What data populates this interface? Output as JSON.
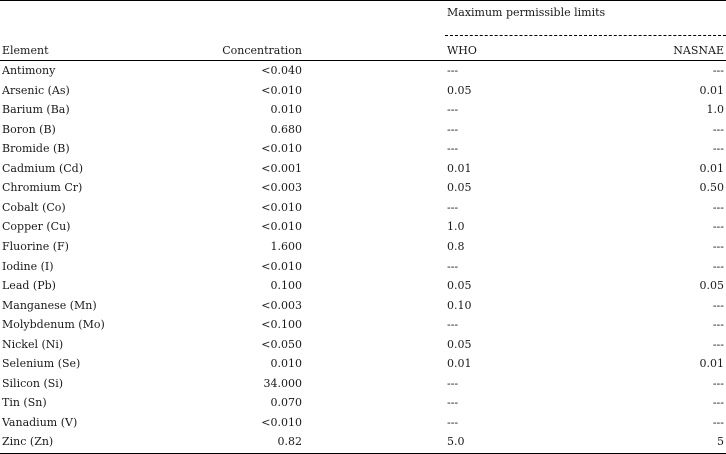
{
  "table": {
    "group_header": "Maximum permissible limits",
    "headers": {
      "element": "Element",
      "concentration": "Concentration",
      "who": "WHO",
      "nasnae": "NASNAE"
    },
    "rows": [
      {
        "element": "Antimony",
        "concentration": "<0.040",
        "who": "---",
        "nasnae": "---"
      },
      {
        "element": "Arsenic (As)",
        "concentration": "<0.010",
        "who": "0.05",
        "nasnae": "0.01"
      },
      {
        "element": "Barium (Ba)",
        "concentration": "0.010",
        "who": "---",
        "nasnae": "1.0"
      },
      {
        "element": "Boron (B)",
        "concentration": "0.680",
        "who": "---",
        "nasnae": "---"
      },
      {
        "element": "Bromide (B)",
        "concentration": "<0.010",
        "who": "---",
        "nasnae": "---"
      },
      {
        "element": "Cadmium (Cd)",
        "concentration": "<0.001",
        "who": "0.01",
        "nasnae": "0.01"
      },
      {
        "element": "Chromium Cr)",
        "concentration": "<0.003",
        "who": "0.05",
        "nasnae": "0.50"
      },
      {
        "element": "Cobalt (Co)",
        "concentration": "<0.010",
        "who": "---",
        "nasnae": "---"
      },
      {
        "element": "Copper (Cu)",
        "concentration": "<0.010",
        "who": "1.0",
        "nasnae": "---"
      },
      {
        "element": "Fluorine (F)",
        "concentration": "1.600",
        "who": "0.8",
        "nasnae": "---"
      },
      {
        "element": "Iodine (I)",
        "concentration": "<0.010",
        "who": "---",
        "nasnae": "---"
      },
      {
        "element": "Lead (Pb)",
        "concentration": "0.100",
        "who": "0.05",
        "nasnae": "0.05"
      },
      {
        "element": "Manganese (Mn)",
        "concentration": "<0.003",
        "who": "0.10",
        "nasnae": "---"
      },
      {
        "element": "Molybdenum (Mo)",
        "concentration": "<0.100",
        "who": "---",
        "nasnae": "---"
      },
      {
        "element": "Nickel (Ni)",
        "concentration": "<0.050",
        "who": "0.05",
        "nasnae": "---"
      },
      {
        "element": "Selenium (Se)",
        "concentration": "0.010",
        "who": "0.01",
        "nasnae": "0.01"
      },
      {
        "element": "Silicon (Si)",
        "concentration": "34.000",
        "who": "---",
        "nasnae": "---"
      },
      {
        "element": "Tin (Sn)",
        "concentration": "0.070",
        "who": "---",
        "nasnae": "---"
      },
      {
        "element": "Vanadium (V)",
        "concentration": "<0.010",
        "who": "---",
        "nasnae": "---"
      },
      {
        "element": "Zinc (Zn)",
        "concentration": "0.82",
        "who": "5.0",
        "nasnae": "5"
      }
    ]
  }
}
